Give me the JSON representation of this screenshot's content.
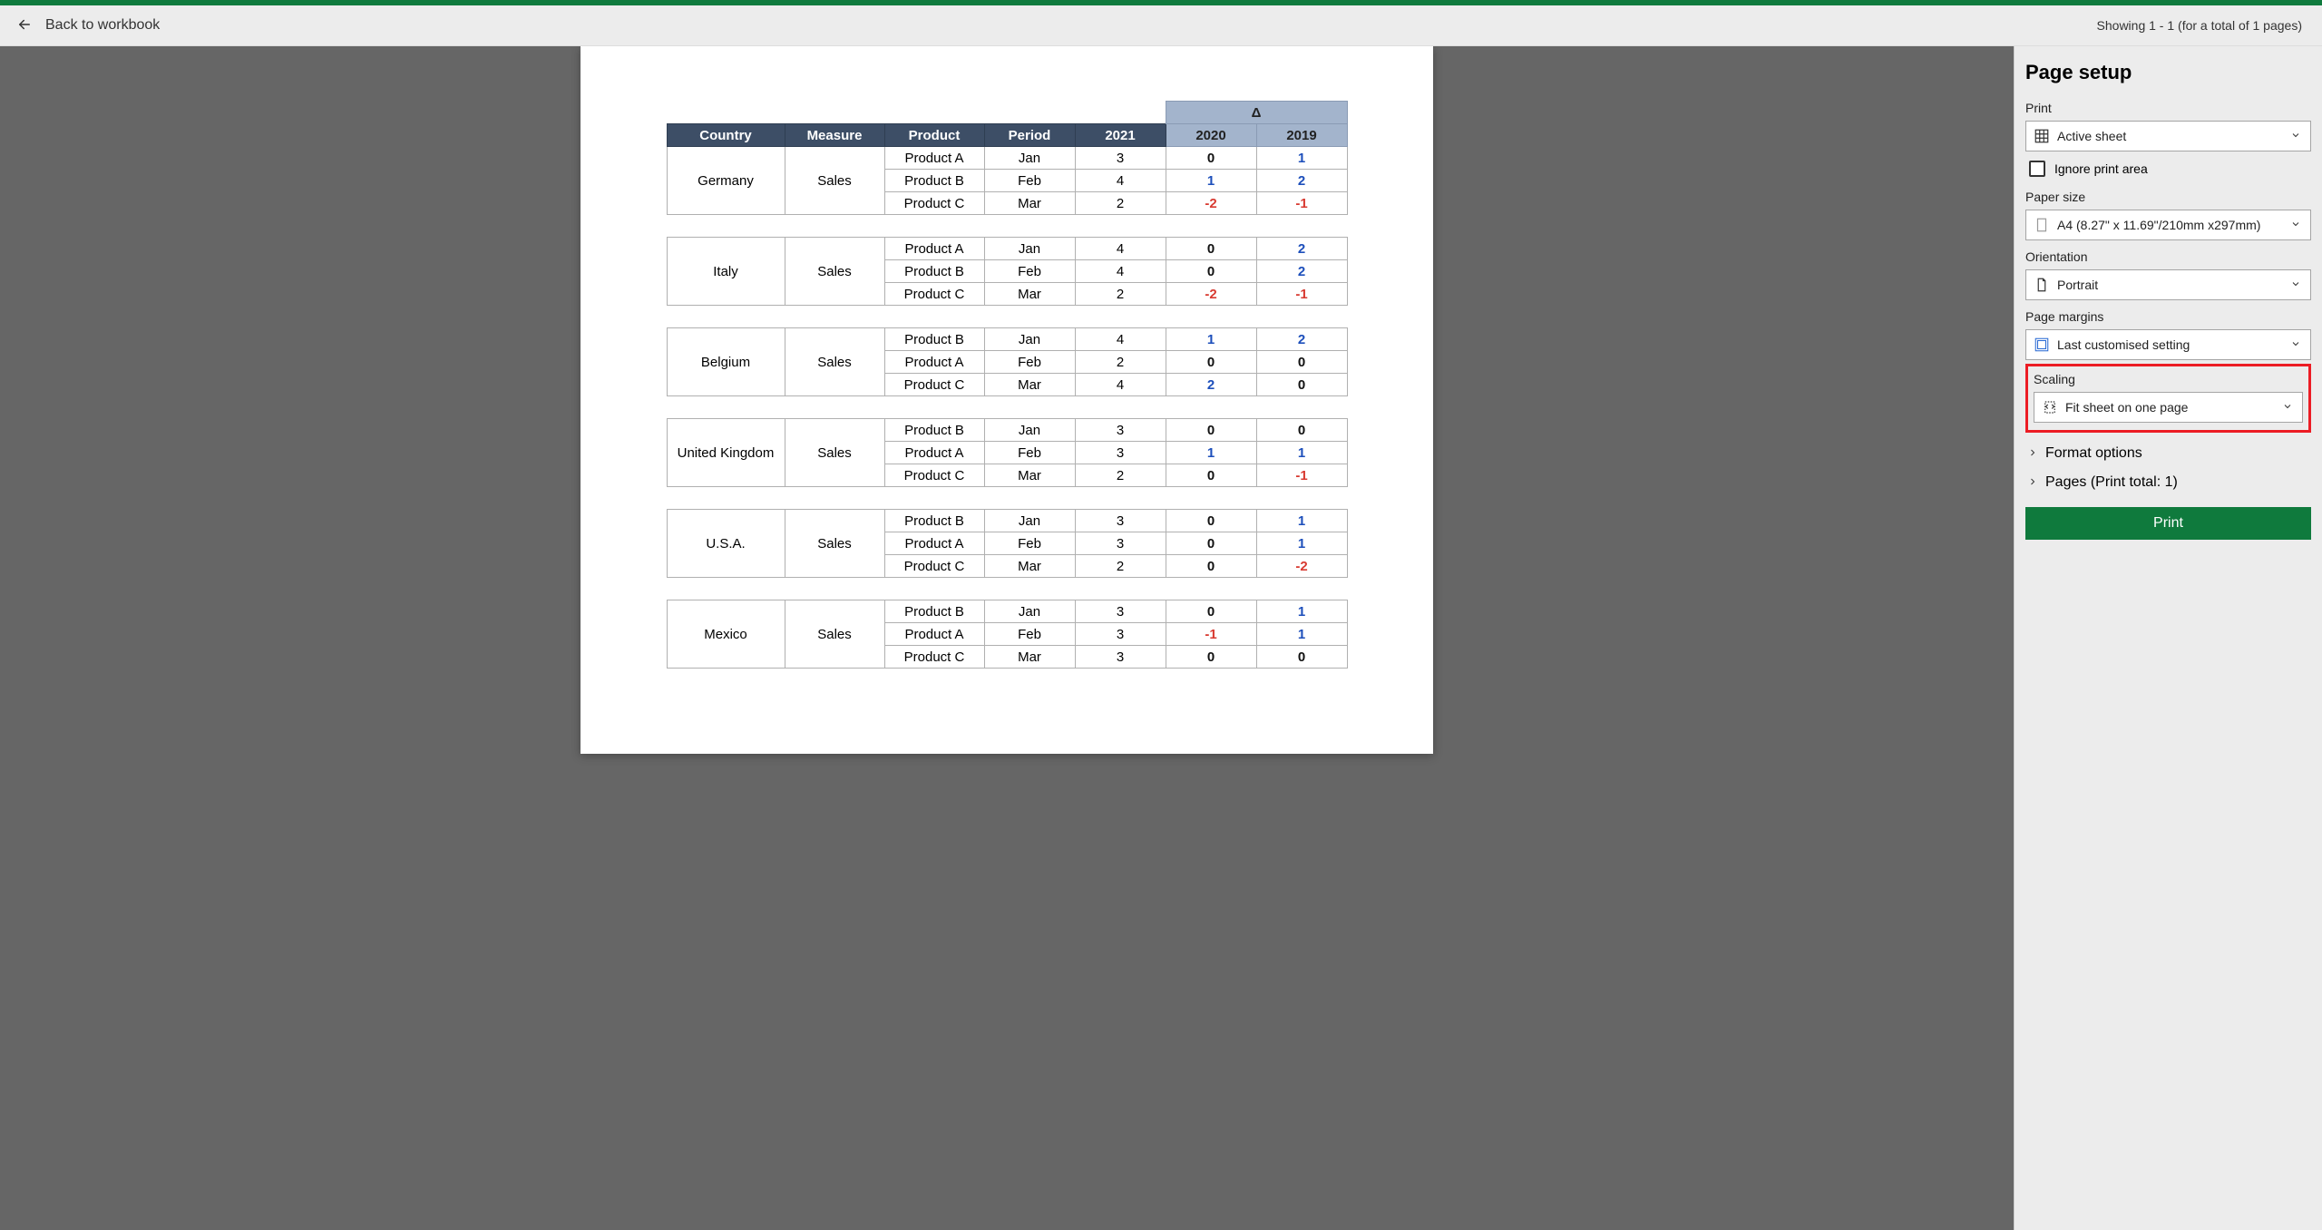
{
  "topbar": {
    "back_label": "Back to workbook",
    "status": "Showing 1 - 1 (for a total of 1 pages)"
  },
  "side": {
    "title": "Page setup",
    "print_label": "Print",
    "print_dd": "Active sheet",
    "ignore_print_area": "Ignore print area",
    "paper_size_label": "Paper size",
    "paper_size_dd": "A4 (8.27\" x 11.69\"/210mm x297mm)",
    "orientation_label": "Orientation",
    "orientation_dd": "Portrait",
    "margins_label": "Page margins",
    "margins_dd": "Last customised setting",
    "scaling_label": "Scaling",
    "scaling_dd": "Fit sheet on one page",
    "format_options": "Format options",
    "pages_label": "Pages (Print total: 1)",
    "print_btn": "Print"
  },
  "table": {
    "delta_symbol": "Δ",
    "headers": {
      "country": "Country",
      "measure": "Measure",
      "product": "Product",
      "period": "Period",
      "y2021": "2021",
      "y2020": "2020",
      "y2019": "2019"
    },
    "groups": [
      {
        "country": "Germany",
        "measure": "Sales",
        "rows": [
          {
            "product": "Product A",
            "period": "Jan",
            "y2021": "3",
            "y2020": {
              "val": "0",
              "neg": false
            },
            "y2019": {
              "val": "1",
              "neg": false
            }
          },
          {
            "product": "Product B",
            "period": "Feb",
            "y2021": "4",
            "y2020": {
              "val": "1",
              "neg": false
            },
            "y2019": {
              "val": "2",
              "neg": false
            }
          },
          {
            "product": "Product C",
            "period": "Mar",
            "y2021": "2",
            "y2020": {
              "val": "-2",
              "neg": true
            },
            "y2019": {
              "val": "-1",
              "neg": true
            }
          }
        ]
      },
      {
        "country": "Italy",
        "measure": "Sales",
        "rows": [
          {
            "product": "Product A",
            "period": "Jan",
            "y2021": "4",
            "y2020": {
              "val": "0",
              "neg": false
            },
            "y2019": {
              "val": "2",
              "neg": false
            }
          },
          {
            "product": "Product B",
            "period": "Feb",
            "y2021": "4",
            "y2020": {
              "val": "0",
              "neg": false
            },
            "y2019": {
              "val": "2",
              "neg": false
            }
          },
          {
            "product": "Product C",
            "period": "Mar",
            "y2021": "2",
            "y2020": {
              "val": "-2",
              "neg": true
            },
            "y2019": {
              "val": "-1",
              "neg": true
            }
          }
        ]
      },
      {
        "country": "Belgium",
        "measure": "Sales",
        "rows": [
          {
            "product": "Product B",
            "period": "Jan",
            "y2021": "4",
            "y2020": {
              "val": "1",
              "neg": false
            },
            "y2019": {
              "val": "2",
              "neg": false
            }
          },
          {
            "product": "Product A",
            "period": "Feb",
            "y2021": "2",
            "y2020": {
              "val": "0",
              "neg": false
            },
            "y2019": {
              "val": "0",
              "neg": false
            }
          },
          {
            "product": "Product C",
            "period": "Mar",
            "y2021": "4",
            "y2020": {
              "val": "2",
              "neg": false
            },
            "y2019": {
              "val": "0",
              "neg": false
            }
          }
        ]
      },
      {
        "country": "United Kingdom",
        "measure": "Sales",
        "rows": [
          {
            "product": "Product B",
            "period": "Jan",
            "y2021": "3",
            "y2020": {
              "val": "0",
              "neg": false
            },
            "y2019": {
              "val": "0",
              "neg": false
            }
          },
          {
            "product": "Product A",
            "period": "Feb",
            "y2021": "3",
            "y2020": {
              "val": "1",
              "neg": false
            },
            "y2019": {
              "val": "1",
              "neg": false
            }
          },
          {
            "product": "Product C",
            "period": "Mar",
            "y2021": "2",
            "y2020": {
              "val": "0",
              "neg": false
            },
            "y2019": {
              "val": "-1",
              "neg": true
            }
          }
        ]
      },
      {
        "country": "U.S.A.",
        "measure": "Sales",
        "rows": [
          {
            "product": "Product B",
            "period": "Jan",
            "y2021": "3",
            "y2020": {
              "val": "0",
              "neg": false
            },
            "y2019": {
              "val": "1",
              "neg": false
            }
          },
          {
            "product": "Product A",
            "period": "Feb",
            "y2021": "3",
            "y2020": {
              "val": "0",
              "neg": false
            },
            "y2019": {
              "val": "1",
              "neg": false
            }
          },
          {
            "product": "Product C",
            "period": "Mar",
            "y2021": "2",
            "y2020": {
              "val": "0",
              "neg": false
            },
            "y2019": {
              "val": "-2",
              "neg": true
            }
          }
        ]
      },
      {
        "country": "Mexico",
        "measure": "Sales",
        "rows": [
          {
            "product": "Product B",
            "period": "Jan",
            "y2021": "3",
            "y2020": {
              "val": "0",
              "neg": false
            },
            "y2019": {
              "val": "1",
              "neg": false
            }
          },
          {
            "product": "Product A",
            "period": "Feb",
            "y2021": "3",
            "y2020": {
              "val": "-1",
              "neg": true
            },
            "y2019": {
              "val": "1",
              "neg": false
            }
          },
          {
            "product": "Product C",
            "period": "Mar",
            "y2021": "3",
            "y2020": {
              "val": "0",
              "neg": false
            },
            "y2019": {
              "val": "0",
              "neg": false
            }
          }
        ]
      }
    ],
    "colors": {
      "header_bg": "#3d4e66",
      "delta_bg": "#a3b4cc",
      "neg": "#d83a31",
      "pos": "#1d4fbb",
      "zero": "#111111"
    }
  }
}
